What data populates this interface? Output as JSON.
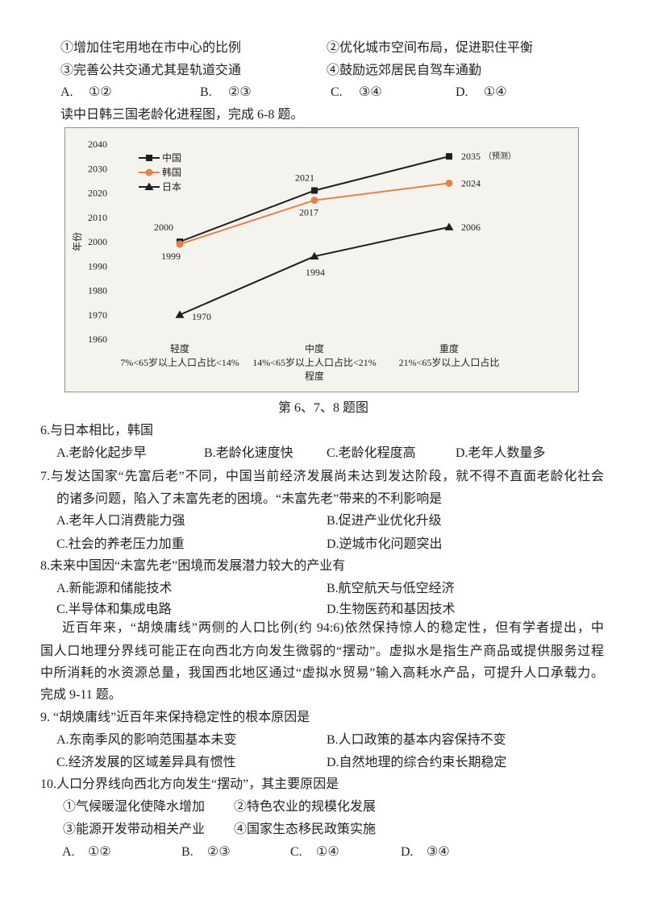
{
  "q5": {
    "items": [
      "①增加住宅用地在市中心的比例",
      "②优化城市空间布局，促进职住平衡",
      "③完善公共交通尤其是轨道交通",
      "④鼓励远郊居民自驾车通勤"
    ],
    "options": [
      {
        "letter": "A.",
        "value": "①②"
      },
      {
        "letter": "B.",
        "value": "②③"
      },
      {
        "letter": "C.",
        "value": "③④"
      },
      {
        "letter": "D.",
        "value": "①④"
      }
    ]
  },
  "intro_6_8": "读中日韩三国老龄化进程图，完成 6-8 题。",
  "chart_data": {
    "type": "line",
    "categories": [
      "轻度",
      "中度",
      "重度"
    ],
    "category_notes": [
      "7%<65岁以上人口占比<14%",
      "14%<65岁以上人口占比<21%",
      "21%<65岁以上人口占比"
    ],
    "xlabel": "程度",
    "ylabel": "年份",
    "ylim": [
      1960,
      2040
    ],
    "yticks": [
      1960,
      1970,
      1980,
      1990,
      2000,
      2010,
      2020,
      2030,
      2040
    ],
    "grid": false,
    "legend": "top-left",
    "series": [
      {
        "name": "中国",
        "values": [
          2000,
          2021,
          2035
        ],
        "notes": {
          "2": "（预测）"
        },
        "marker": "square",
        "color": "#1f1f1f"
      },
      {
        "name": "韩国",
        "values": [
          1999,
          2017,
          2024
        ],
        "marker": "circle",
        "color": "#e3824f"
      },
      {
        "name": "日本",
        "values": [
          1970,
          1994,
          2006
        ],
        "marker": "triangle",
        "color": "#1f1f1f"
      }
    ]
  },
  "figure_caption": "第 6、7、8 题图",
  "q6": {
    "stem": [
      "6.与日本相比，韩国"
    ],
    "options": [
      "A.老龄化起步早",
      "B.老龄化速度快",
      "C.老龄化程度高",
      "D.老年人数量多"
    ]
  },
  "q7": {
    "stem": [
      "7.与发达国家“先富后老”不同，中国当前经济发展尚未达到发达阶段，就不得不直面老龄化社会",
      "的诸多问题，陷入了未富先老的困境。“未富先老”带来的不利影响是"
    ],
    "options": [
      "A.老年人口消费能力强",
      "B.促进产业优化升级",
      "C.社会的养老压力加重",
      "D.逆城市化问题突出"
    ]
  },
  "q8": {
    "stem": [
      "8.未来中国因“未富先老”困境而发展潜力较大的产业有"
    ],
    "options": [
      "A.新能源和储能技术",
      "B.航空航天与低空经济",
      "C.半导体和集成电路",
      "D.生物医药和基因技术"
    ]
  },
  "passage_9_11": [
    "近百年来，“胡焕庸线”两侧的人口比例(约 94:6)依然保持惊人的稳定性，但有学者提出，中",
    "国人口地理分界线可能正在向西北方向发生微弱的“摆动”。虚拟水是指生产商品或提供服务过程",
    "中所消耗的水资源总量，我国西北地区通过“虚拟水贸易”输入高耗水产品，可提升人口承载力。",
    "完成 9-11 题。"
  ],
  "q9": {
    "stem": [
      "9. “胡焕庸线”近百年来保持稳定性的根本原因是"
    ],
    "options": [
      "A.东南季风的影响范围基本未变",
      "B.人口政策的基本内容保持不变",
      "C.经济发展的区域差异具有惯性",
      "D.自然地理的综合约束长期稳定"
    ]
  },
  "q10": {
    "stem": [
      "10.人口分界线向西北方向发生“摆动”，其主要原因是"
    ],
    "items": [
      "①气候暖湿化使降水增加",
      "②特色农业的规模化发展",
      "③能源开发带动相关产业",
      "④国家生态移民政策实施"
    ],
    "options": [
      {
        "letter": "A.",
        "value": "①②"
      },
      {
        "letter": "B.",
        "value": "②③"
      },
      {
        "letter": "C.",
        "value": "①④"
      },
      {
        "letter": "D.",
        "value": "③④"
      }
    ]
  }
}
